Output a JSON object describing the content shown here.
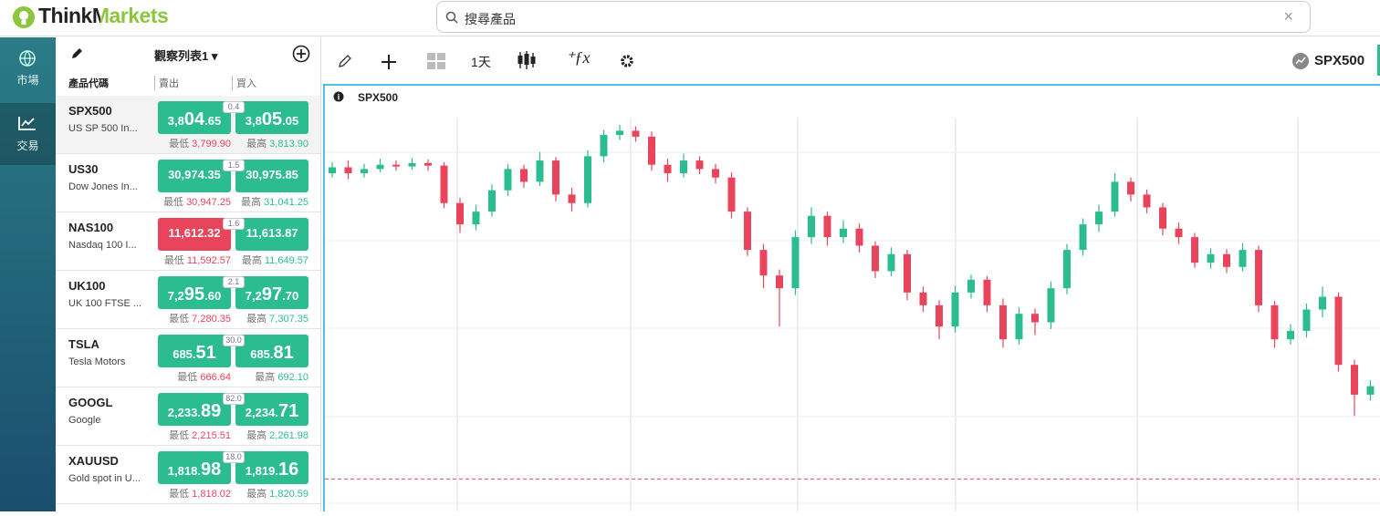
{
  "header": {
    "logo": "ThinkMarkets",
    "search_placeholder": "搜尋產品"
  },
  "nav": [
    {
      "label": "市場"
    },
    {
      "label": "交易"
    }
  ],
  "watchlist": {
    "title": "觀察列表1",
    "columns": [
      "產品代碼",
      "賣出",
      "買入"
    ],
    "low_label": "最低",
    "high_label": "最高",
    "up_color": "#2bbd8f",
    "down_color": "#e8455d",
    "rows": [
      {
        "symbol": "SPX500",
        "name": "US SP 500 In...",
        "sell": [
          "3,8",
          "04",
          ".65"
        ],
        "buy": [
          "3,8",
          "05",
          ".05"
        ],
        "spread": "0.4",
        "low": "3,799.90",
        "high": "3,813.90",
        "sell_dir": "up"
      },
      {
        "symbol": "US30",
        "name": "Dow Jones In...",
        "sell": [
          "30,974.35"
        ],
        "buy": [
          "30,975.85"
        ],
        "spread": "1.5",
        "low": "30,947.25",
        "high": "31,041.25",
        "sell_dir": "up"
      },
      {
        "symbol": "NAS100",
        "name": "Nasdaq 100 I...",
        "sell": [
          "11,612.32"
        ],
        "buy": [
          "11,613.87"
        ],
        "spread": "1.6",
        "low": "11,592.57",
        "high": "11,649.57",
        "sell_dir": "down"
      },
      {
        "symbol": "UK100",
        "name": "UK 100 FTSE ...",
        "sell": [
          "7,2",
          "95",
          ".60"
        ],
        "buy": [
          "7,2",
          "97",
          ".70"
        ],
        "spread": "2.1",
        "low": "7,280.35",
        "high": "7,307.35",
        "sell_dir": "up"
      },
      {
        "symbol": "TSLA",
        "name": "Tesla Motors",
        "sell": [
          "685.",
          "51"
        ],
        "buy": [
          "685.",
          "81"
        ],
        "spread": "30.0",
        "low": "666.64",
        "high": "692.10",
        "sell_dir": "up"
      },
      {
        "symbol": "GOOGL",
        "name": "Google",
        "sell": [
          "2,233.",
          "89"
        ],
        "buy": [
          "2,234.",
          "71"
        ],
        "spread": "82.0",
        "low": "2,215.51",
        "high": "2,261.98",
        "sell_dir": "up"
      },
      {
        "symbol": "XAUUSD",
        "name": "Gold spot in U...",
        "sell": [
          "1,818.",
          "98"
        ],
        "buy": [
          "1,819.",
          "16"
        ],
        "spread": "18.0",
        "low": "1,818.02",
        "high": "1,820.59",
        "sell_dir": "up"
      }
    ]
  },
  "toolbar": {
    "interval": "1天",
    "symbol": "SPX500"
  },
  "chart_data": {
    "type": "candlestick",
    "title": "SPX500",
    "up_color": "#2bbd8f",
    "down_color": "#e8455d",
    "ylim": [
      3600,
      4100
    ],
    "price_line": 3636,
    "open": [
      3995,
      4002,
      3995,
      4000,
      4005,
      4003,
      4007,
      4004,
      3960,
      3935,
      3950,
      3975,
      4000,
      3985,
      4010,
      3970,
      3960,
      4015,
      4040,
      4045,
      4038,
      4005,
      3995,
      4010,
      4000,
      3990,
      3950,
      3905,
      3875,
      3860,
      3920,
      3945,
      3920,
      3930,
      3910,
      3880,
      3900,
      3855,
      3840,
      3815,
      3855,
      3870,
      3840,
      3800,
      3830,
      3820,
      3860,
      3905,
      3935,
      3950,
      3985,
      3970,
      3955,
      3930,
      3920,
      3890,
      3900,
      3885,
      3905,
      3840,
      3800,
      3810,
      3835,
      3850,
      3770,
      3735
    ],
    "high": [
      4008,
      4010,
      4006,
      4012,
      4010,
      4013,
      4011,
      4008,
      3966,
      3958,
      3982,
      4006,
      4005,
      4020,
      4014,
      3978,
      4022,
      4046,
      4052,
      4050,
      4044,
      4012,
      4018,
      4015,
      4006,
      3996,
      3955,
      3912,
      3882,
      3928,
      3955,
      3950,
      3940,
      3936,
      3915,
      3908,
      3905,
      3862,
      3846,
      3863,
      3876,
      3874,
      3848,
      3838,
      3836,
      3868,
      3912,
      3942,
      3958,
      3995,
      3990,
      3976,
      3960,
      3937,
      3925,
      3907,
      3906,
      3913,
      3910,
      3845,
      3818,
      3842,
      3862,
      3855,
      3776,
      3752
    ],
    "low": [
      3990,
      3988,
      3990,
      3996,
      3998,
      3999,
      3998,
      3954,
      3925,
      3928,
      3944,
      3968,
      3978,
      3980,
      3962,
      3950,
      3955,
      4008,
      4034,
      4032,
      3998,
      3985,
      3990,
      3994,
      3983,
      3942,
      3898,
      3860,
      3815,
      3852,
      3912,
      3910,
      3913,
      3902,
      3872,
      3874,
      3846,
      3832,
      3800,
      3808,
      3848,
      3832,
      3790,
      3794,
      3805,
      3812,
      3853,
      3898,
      3926,
      3944,
      3962,
      3948,
      3922,
      3912,
      3884,
      3883,
      3878,
      3880,
      3832,
      3790,
      3794,
      3802,
      3826,
      3762,
      3710,
      3728
    ],
    "close": [
      4002,
      3995,
      4000,
      4005,
      4003,
      4007,
      4004,
      3960,
      3935,
      3950,
      3975,
      4000,
      3985,
      4010,
      3970,
      3960,
      4015,
      4040,
      4045,
      4038,
      4005,
      3995,
      4010,
      4000,
      3990,
      3950,
      3905,
      3875,
      3860,
      3920,
      3945,
      3920,
      3930,
      3910,
      3880,
      3900,
      3855,
      3840,
      3815,
      3855,
      3870,
      3840,
      3800,
      3830,
      3820,
      3860,
      3905,
      3935,
      3950,
      3985,
      3970,
      3955,
      3930,
      3920,
      3890,
      3900,
      3885,
      3905,
      3840,
      3800,
      3810,
      3835,
      3850,
      3770,
      3735,
      3745
    ]
  }
}
